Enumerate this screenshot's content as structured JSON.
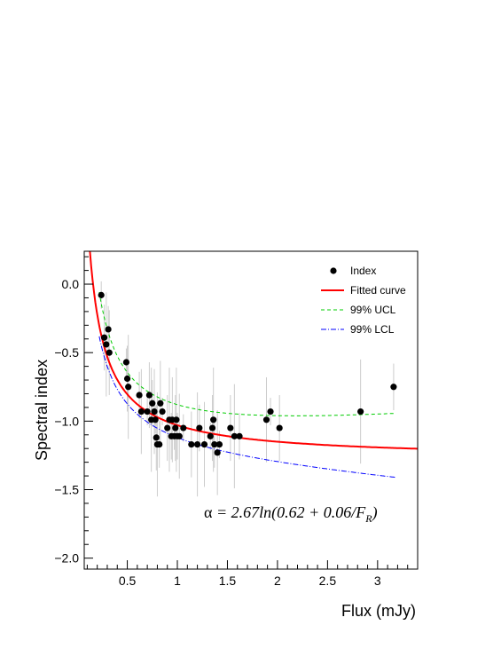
{
  "chart_data": {
    "type": "scatter",
    "xlabel": "Flux (mJy)",
    "ylabel": "Spectral index",
    "xlim": [
      0.07,
      3.4
    ],
    "ylim": [
      -2.08,
      0.24
    ],
    "x_ticks": [
      0.5,
      1,
      1.5,
      2,
      2.5,
      3
    ],
    "x_tick_labels": [
      "0.5",
      "1",
      "1.5",
      "2",
      "2.5",
      "3"
    ],
    "y_ticks": [
      0.0,
      -0.5,
      -1.0,
      -1.5,
      -2.0
    ],
    "y_tick_labels": [
      "0.0",
      "−0.5",
      "−1.0",
      "−1.5",
      "−2.0"
    ],
    "legend_position": "top-right",
    "legend": [
      {
        "label": "Index",
        "color": "#000000",
        "marker": "dot"
      },
      {
        "label": "Fitted curve",
        "color": "#ff0000",
        "style": "solid"
      },
      {
        "label": "99% UCL",
        "color": "#00cc00",
        "style": "dashed"
      },
      {
        "label": "99% LCL",
        "color": "#0000ff",
        "style": "dash-dot"
      }
    ],
    "annotation": {
      "alpha_symbol": "α",
      "formula_text": " = 2.67ln(0.62 + 0.06/F",
      "subscript": "R",
      "closing": ")"
    },
    "series": [
      {
        "name": "Index",
        "x": [
          0.24,
          0.27,
          0.29,
          0.31,
          0.32,
          0.49,
          0.5,
          0.51,
          0.62,
          0.64,
          0.7,
          0.72,
          0.74,
          0.75,
          0.77,
          0.78,
          0.79,
          0.8,
          0.82,
          0.83,
          0.85,
          0.9,
          0.92,
          0.94,
          0.95,
          0.97,
          0.98,
          0.99,
          1.0,
          1.02,
          1.06,
          1.14,
          1.2,
          1.22,
          1.27,
          1.33,
          1.35,
          1.36,
          1.37,
          1.4,
          1.42,
          1.53,
          1.57,
          1.62,
          1.89,
          1.93,
          2.02,
          2.83,
          3.16
        ],
        "y": [
          -0.08,
          -0.39,
          -0.44,
          -0.33,
          -0.5,
          -0.57,
          -0.69,
          -0.75,
          -0.81,
          -0.93,
          -0.93,
          -0.81,
          -0.99,
          -0.87,
          -0.93,
          -0.99,
          -1.12,
          -1.17,
          -1.17,
          -0.87,
          -0.93,
          -1.05,
          -0.99,
          -1.11,
          -0.99,
          -1.11,
          -1.05,
          -0.99,
          -1.11,
          -1.11,
          -1.05,
          -1.17,
          -1.17,
          -1.05,
          -1.17,
          -1.11,
          -1.05,
          -0.99,
          -1.17,
          -1.23,
          -1.17,
          -1.05,
          -1.11,
          -1.11,
          -0.99,
          -0.93,
          -1.05,
          -0.93,
          -0.75
        ]
      },
      {
        "name": "Fitted curve",
        "x_range": [
          0.07,
          3.4
        ],
        "curve": "fit"
      },
      {
        "name": "99% UCL",
        "x_range": [
          0.22,
          3.18
        ],
        "curve": "ucl"
      },
      {
        "name": "99% LCL",
        "x_range": [
          0.22,
          3.18
        ],
        "curve": "lcl"
      }
    ]
  }
}
